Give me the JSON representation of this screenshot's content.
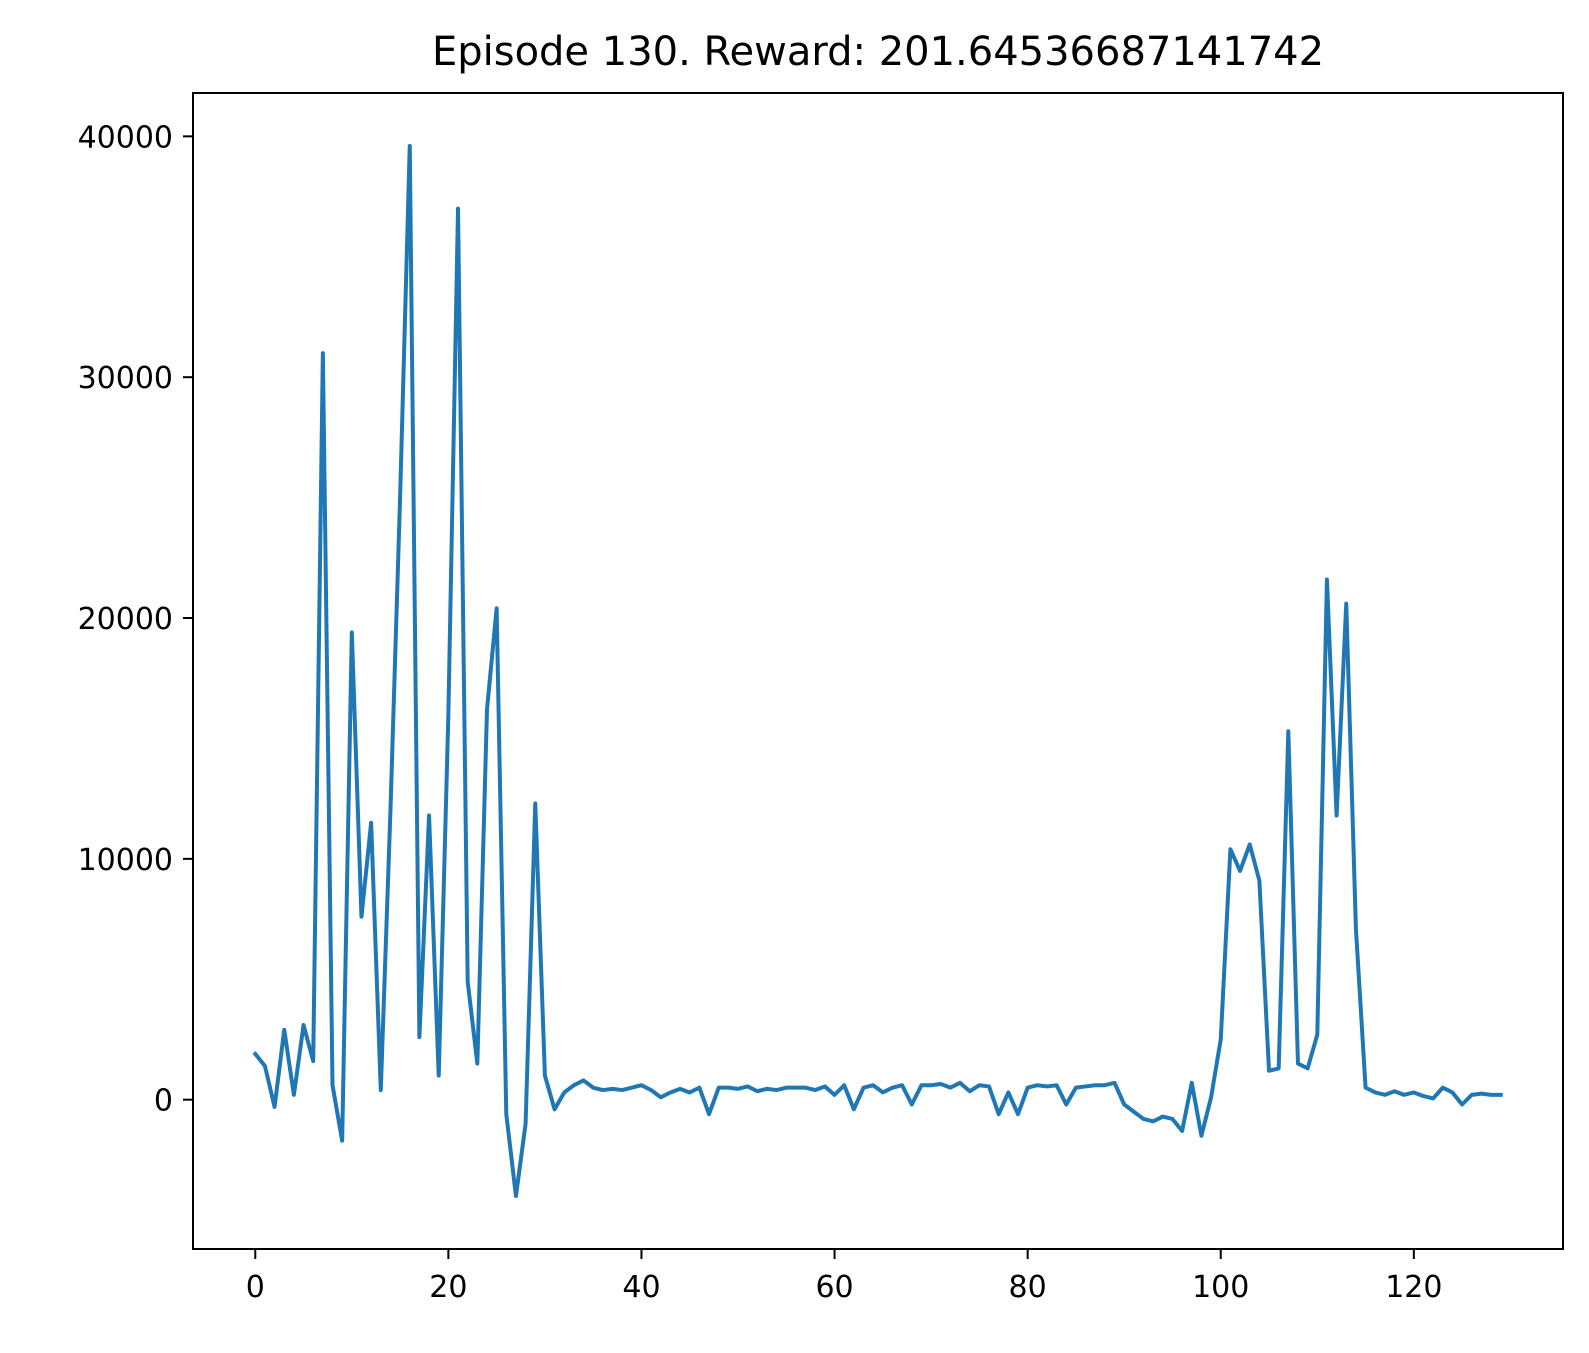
{
  "chart_data": {
    "type": "line",
    "title": "Episode 130. Reward: 201.64536687141742",
    "xlabel": "",
    "ylabel": "",
    "xlim": [
      -6.45,
      135.45
    ],
    "ylim": [
      -6200,
      41800
    ],
    "x_ticks": [
      0,
      20,
      40,
      60,
      80,
      100,
      120
    ],
    "y_ticks": [
      0,
      10000,
      20000,
      30000,
      40000
    ],
    "grid": false,
    "legend": "none",
    "series": [
      {
        "color": "#1f77b4",
        "x": [
          0,
          1,
          2,
          3,
          4,
          5,
          6,
          7,
          8,
          9,
          10,
          11,
          12,
          13,
          14,
          15,
          16,
          17,
          18,
          19,
          20,
          21,
          22,
          23,
          24,
          25,
          26,
          27,
          28,
          29,
          30,
          31,
          32,
          33,
          34,
          35,
          36,
          37,
          38,
          39,
          40,
          41,
          42,
          43,
          44,
          45,
          46,
          47,
          48,
          49,
          50,
          51,
          52,
          53,
          54,
          55,
          56,
          57,
          58,
          59,
          60,
          61,
          62,
          63,
          64,
          65,
          66,
          67,
          68,
          69,
          70,
          71,
          72,
          73,
          74,
          75,
          76,
          77,
          78,
          79,
          80,
          81,
          82,
          83,
          84,
          85,
          86,
          87,
          88,
          89,
          90,
          91,
          92,
          93,
          94,
          95,
          96,
          97,
          98,
          99,
          100,
          101,
          102,
          103,
          104,
          105,
          106,
          107,
          108,
          109,
          110,
          111,
          112,
          113,
          114,
          115,
          116,
          117,
          118,
          119,
          120,
          121,
          122,
          123,
          124,
          125,
          126,
          127,
          128,
          129
        ],
        "values": [
          1900,
          1400,
          -300,
          2900,
          200,
          3100,
          1600,
          31000,
          600,
          -1700,
          19400,
          7600,
          11500,
          400,
          12000,
          25000,
          39600,
          2600,
          11800,
          1000,
          16000,
          37000,
          4900,
          1500,
          16200,
          20400,
          -600,
          -4000,
          -1000,
          12300,
          1000,
          -400,
          300,
          600,
          800,
          500,
          400,
          450,
          400,
          500,
          600,
          400,
          100,
          300,
          450,
          300,
          500,
          -600,
          500,
          500,
          450,
          550,
          350,
          450,
          400,
          500,
          500,
          500,
          400,
          550,
          200,
          600,
          -400,
          500,
          600,
          300,
          500,
          600,
          -200,
          600,
          600,
          650,
          500,
          700,
          350,
          600,
          550,
          -600,
          300,
          -600,
          500,
          600,
          550,
          600,
          -200,
          500,
          550,
          600,
          600,
          700,
          -200,
          -500,
          -800,
          -900,
          -700,
          -800,
          -1300,
          700,
          -1500,
          100,
          2500,
          10400,
          9500,
          10600,
          9100,
          1200,
          1300,
          15300,
          1500,
          1300,
          2700,
          21600,
          11800,
          20600,
          7100,
          500,
          300,
          200,
          350,
          200,
          300,
          150,
          50,
          500,
          300,
          -200,
          200,
          250,
          200,
          200
        ]
      }
    ]
  }
}
